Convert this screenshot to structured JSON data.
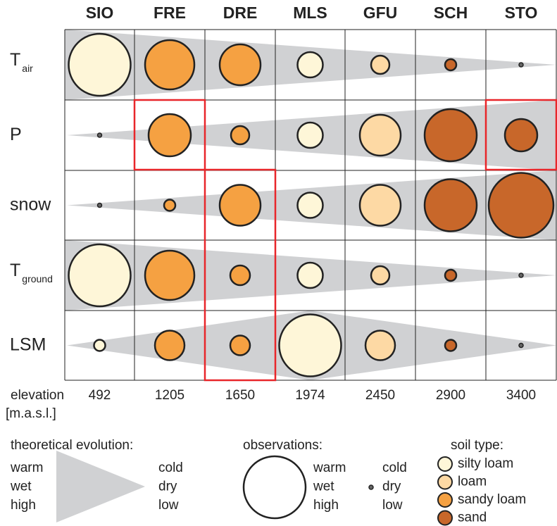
{
  "columns": [
    "SIO",
    "FRE",
    "DRE",
    "MLS",
    "GFU",
    "SCH",
    "STO"
  ],
  "rows": [
    {
      "label": "T",
      "sub": "air"
    },
    {
      "label": "P"
    },
    {
      "label": "snow"
    },
    {
      "label": "T",
      "sub": "ground"
    },
    {
      "label": "LSM"
    }
  ],
  "elevation": {
    "label": "elevation",
    "unit": "[m.a.s.l.]",
    "values": [
      492,
      1205,
      1650,
      1974,
      2450,
      2900,
      3400
    ]
  },
  "legend": {
    "theoretical": {
      "title": "theoretical evolution:",
      "left": [
        "warm",
        "wet",
        "high"
      ],
      "right": [
        "cold",
        "dry",
        "low"
      ]
    },
    "observations": {
      "title": "observations:",
      "left": [
        "warm",
        "wet",
        "high"
      ],
      "right": [
        "cold",
        "dry",
        "low"
      ]
    },
    "soil": {
      "title": "soil type:",
      "items": [
        "silty loam",
        "loam",
        "sandy loam",
        "sand"
      ]
    }
  }
}
